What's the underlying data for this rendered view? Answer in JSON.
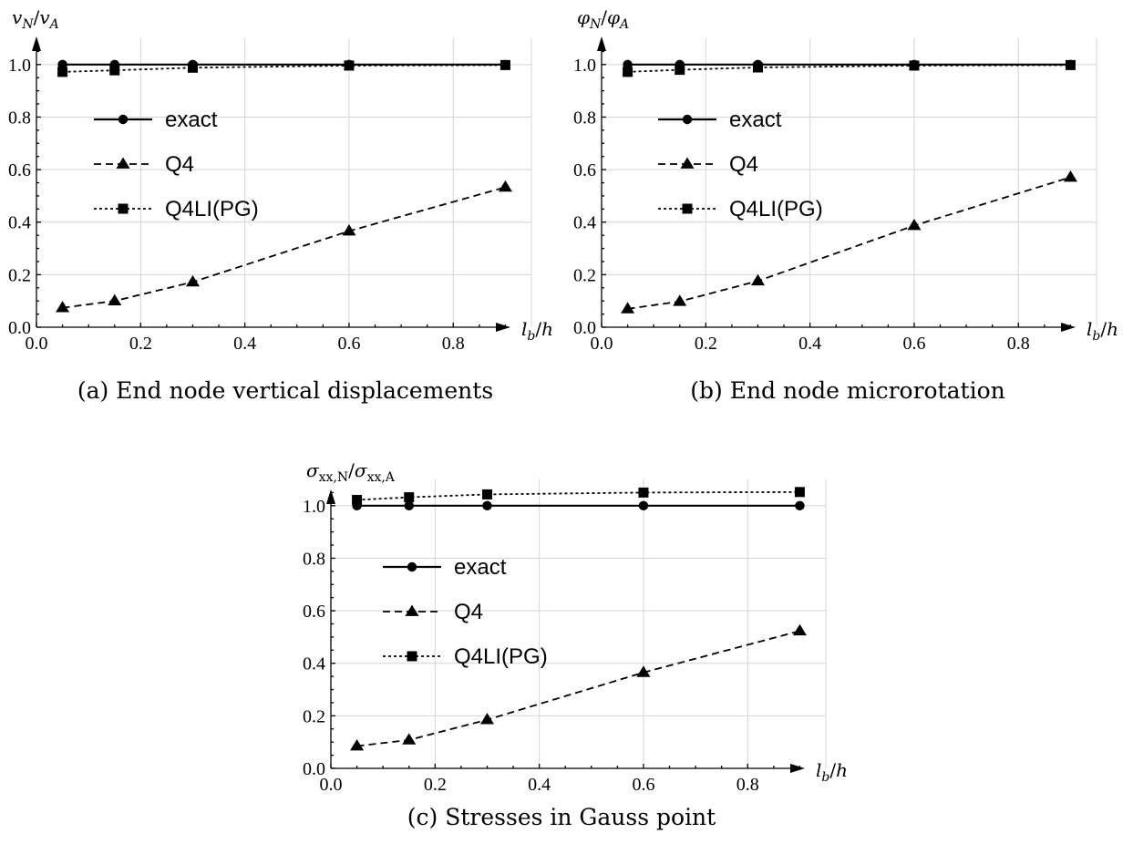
{
  "chart_data": [
    {
      "type": "line",
      "panel": "a",
      "caption": "(a) End node vertical displacements",
      "ylabel": "v_N/v_A",
      "xlabel": "l_b/h",
      "xlim": [
        0.0,
        0.95
      ],
      "ylim": [
        0.0,
        1.1
      ],
      "xticks": [
        "0.0",
        "0.2",
        "0.4",
        "0.6",
        "0.8"
      ],
      "yticks": [
        "0.0",
        "0.2",
        "0.4",
        "0.6",
        "0.8",
        "1.0"
      ],
      "x": [
        0.05,
        0.15,
        0.3,
        0.6,
        0.9
      ],
      "grid": true,
      "legend_position": "middle-left",
      "series": [
        {
          "name": "exact",
          "style": "solid",
          "marker": "circle",
          "values": [
            1.0,
            1.0,
            1.0,
            1.0,
            1.0
          ]
        },
        {
          "name": "Q4",
          "style": "dashed",
          "marker": "triangle",
          "values": [
            0.074,
            0.1,
            0.172,
            0.366,
            0.533
          ]
        },
        {
          "name": "Q4LI(PG)",
          "style": "dotted",
          "marker": "square",
          "values": [
            0.972,
            0.978,
            0.988,
            0.996,
            0.998
          ]
        }
      ]
    },
    {
      "type": "line",
      "panel": "b",
      "caption": "(b) End node microrotation",
      "ylabel": "φ_N/φ_A",
      "xlabel": "l_b/h",
      "xlim": [
        0.0,
        0.95
      ],
      "ylim": [
        0.0,
        1.1
      ],
      "xticks": [
        "0.0",
        "0.2",
        "0.4",
        "0.6",
        "0.8"
      ],
      "yticks": [
        "0.0",
        "0.2",
        "0.4",
        "0.6",
        "0.8",
        "1.0"
      ],
      "x": [
        0.05,
        0.15,
        0.3,
        0.6,
        0.9
      ],
      "grid": true,
      "legend_position": "middle-left",
      "series": [
        {
          "name": "exact",
          "style": "solid",
          "marker": "circle",
          "values": [
            1.0,
            1.0,
            1.0,
            1.0,
            1.0
          ]
        },
        {
          "name": "Q4",
          "style": "dashed",
          "marker": "triangle",
          "values": [
            0.07,
            0.098,
            0.176,
            0.387,
            0.571
          ]
        },
        {
          "name": "Q4LI(PG)",
          "style": "dotted",
          "marker": "square",
          "values": [
            0.972,
            0.98,
            0.989,
            0.996,
            0.998
          ]
        }
      ]
    },
    {
      "type": "line",
      "panel": "c",
      "caption": "(c) Stresses in Gauss point",
      "ylabel": "σ_xx,N/σ_xx,A",
      "xlabel": "l_b/h",
      "xlim": [
        0.0,
        0.95
      ],
      "ylim": [
        0.0,
        1.1
      ],
      "xticks": [
        "0.0",
        "0.2",
        "0.4",
        "0.6",
        "0.8"
      ],
      "yticks": [
        "0.0",
        "0.2",
        "0.4",
        "0.6",
        "0.8",
        "1.0"
      ],
      "x": [
        0.05,
        0.15,
        0.3,
        0.6,
        0.9
      ],
      "grid": true,
      "legend_position": "middle-left",
      "series": [
        {
          "name": "exact",
          "style": "solid",
          "marker": "circle",
          "values": [
            1.0,
            1.0,
            1.0,
            1.0,
            1.0
          ]
        },
        {
          "name": "Q4",
          "style": "dashed",
          "marker": "triangle",
          "values": [
            0.085,
            0.108,
            0.185,
            0.365,
            0.523
          ]
        },
        {
          "name": "Q4LI(PG)",
          "style": "dotted",
          "marker": "square",
          "values": [
            1.022,
            1.032,
            1.043,
            1.05,
            1.052
          ]
        }
      ]
    }
  ]
}
